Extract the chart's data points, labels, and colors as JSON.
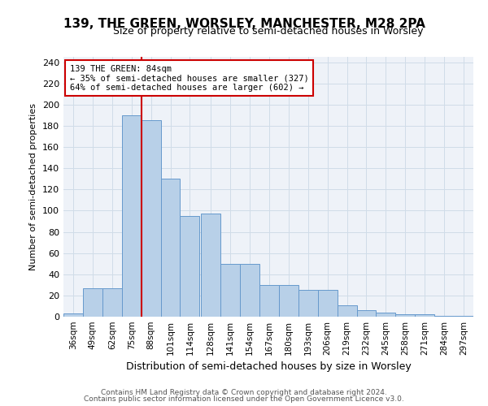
{
  "title": "139, THE GREEN, WORSLEY, MANCHESTER, M28 2PA",
  "subtitle": "Size of property relative to semi-detached houses in Worsley",
  "xlabel": "Distribution of semi-detached houses by size in Worsley",
  "ylabel": "Number of semi-detached properties",
  "footer1": "Contains HM Land Registry data © Crown copyright and database right 2024.",
  "footer2": "Contains public sector information licensed under the Open Government Licence v3.0.",
  "annotation_text_line1": "139 THE GREEN: 84sqm",
  "annotation_text_line2": "← 35% of semi-detached houses are smaller (327)",
  "annotation_text_line3": "64% of semi-detached houses are larger (602) →",
  "bar_color": "#b8d0e8",
  "bar_edge_color": "#6699cc",
  "red_line_color": "#cc0000",
  "annotation_box_color": "#ffffff",
  "annotation_box_edge": "#cc0000",
  "grid_color": "#d0dce8",
  "background_color": "#eef2f8",
  "bins": [
    36,
    49,
    62,
    75,
    88,
    101,
    114,
    128,
    141,
    154,
    167,
    180,
    193,
    206,
    219,
    232,
    245,
    258,
    271,
    284,
    297
  ],
  "bin_labels": [
    "36sqm",
    "49sqm",
    "62sqm",
    "75sqm",
    "88sqm",
    "101sqm",
    "114sqm",
    "128sqm",
    "141sqm",
    "154sqm",
    "167sqm",
    "180sqm",
    "193sqm",
    "206sqm",
    "219sqm",
    "232sqm",
    "245sqm",
    "258sqm",
    "271sqm",
    "284sqm",
    "297sqm"
  ],
  "values": [
    3,
    27,
    27,
    190,
    185,
    130,
    95,
    97,
    50,
    50,
    30,
    30,
    25,
    25,
    11,
    6,
    4,
    2,
    2,
    1,
    1
  ],
  "red_line_x": 88,
  "ylim": [
    0,
    245
  ],
  "yticks": [
    0,
    20,
    40,
    60,
    80,
    100,
    120,
    140,
    160,
    180,
    200,
    220,
    240
  ]
}
